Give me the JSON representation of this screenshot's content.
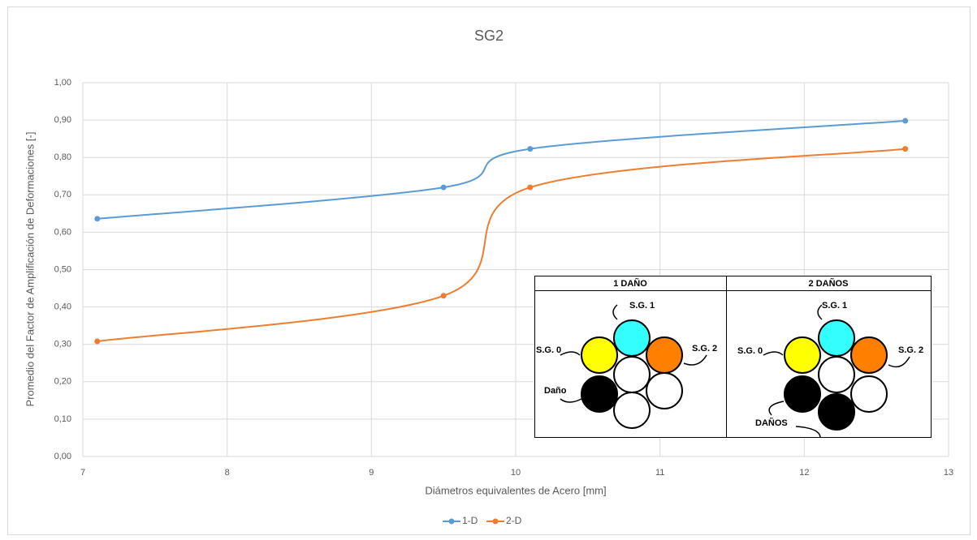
{
  "chart_data": {
    "type": "line",
    "title": "SG2",
    "xlabel": "Diámetros equivalentes de Acero [mm]",
    "ylabel": "Promedio del Factor de Amplificación de Deformaciones [-]",
    "x": [
      7.1,
      9.5,
      10.1,
      12.7
    ],
    "series": [
      {
        "name": "1-D",
        "color": "#5b9bd5",
        "values": [
          0.636,
          0.72,
          0.823,
          0.898
        ]
      },
      {
        "name": "2-D",
        "color": "#ed7d31",
        "values": [
          0.308,
          0.43,
          0.72,
          0.823
        ]
      }
    ],
    "xlim": [
      7,
      13
    ],
    "xticks": [
      7,
      8,
      9,
      10,
      11,
      12,
      13
    ],
    "ylim": [
      0,
      1
    ],
    "yticks": [
      {
        "value": 0,
        "label": "0,00"
      },
      {
        "value": 0.1,
        "label": "0,10"
      },
      {
        "value": 0.2,
        "label": "0,20"
      },
      {
        "value": 0.3,
        "label": "0,30"
      },
      {
        "value": 0.4,
        "label": "0,40"
      },
      {
        "value": 0.5,
        "label": "0,50"
      },
      {
        "value": 0.6,
        "label": "0,60"
      },
      {
        "value": 0.7,
        "label": "0,70"
      },
      {
        "value": 0.8,
        "label": "0,80"
      },
      {
        "value": 0.9,
        "label": "0,90"
      },
      {
        "value": 1,
        "label": "1,00"
      }
    ],
    "grid": true,
    "smooth": true,
    "legend": "bottom",
    "inset": [
      {
        "title": "1 DAÑO",
        "labels": [
          "S.G. 1",
          "S.G. 0",
          "S.G. 2",
          "Daño"
        ]
      },
      {
        "title": "2 DAÑOS",
        "labels": [
          "S.G. 1",
          "S.G. 0",
          "S.G. 2",
          "DAÑOS"
        ]
      }
    ]
  }
}
